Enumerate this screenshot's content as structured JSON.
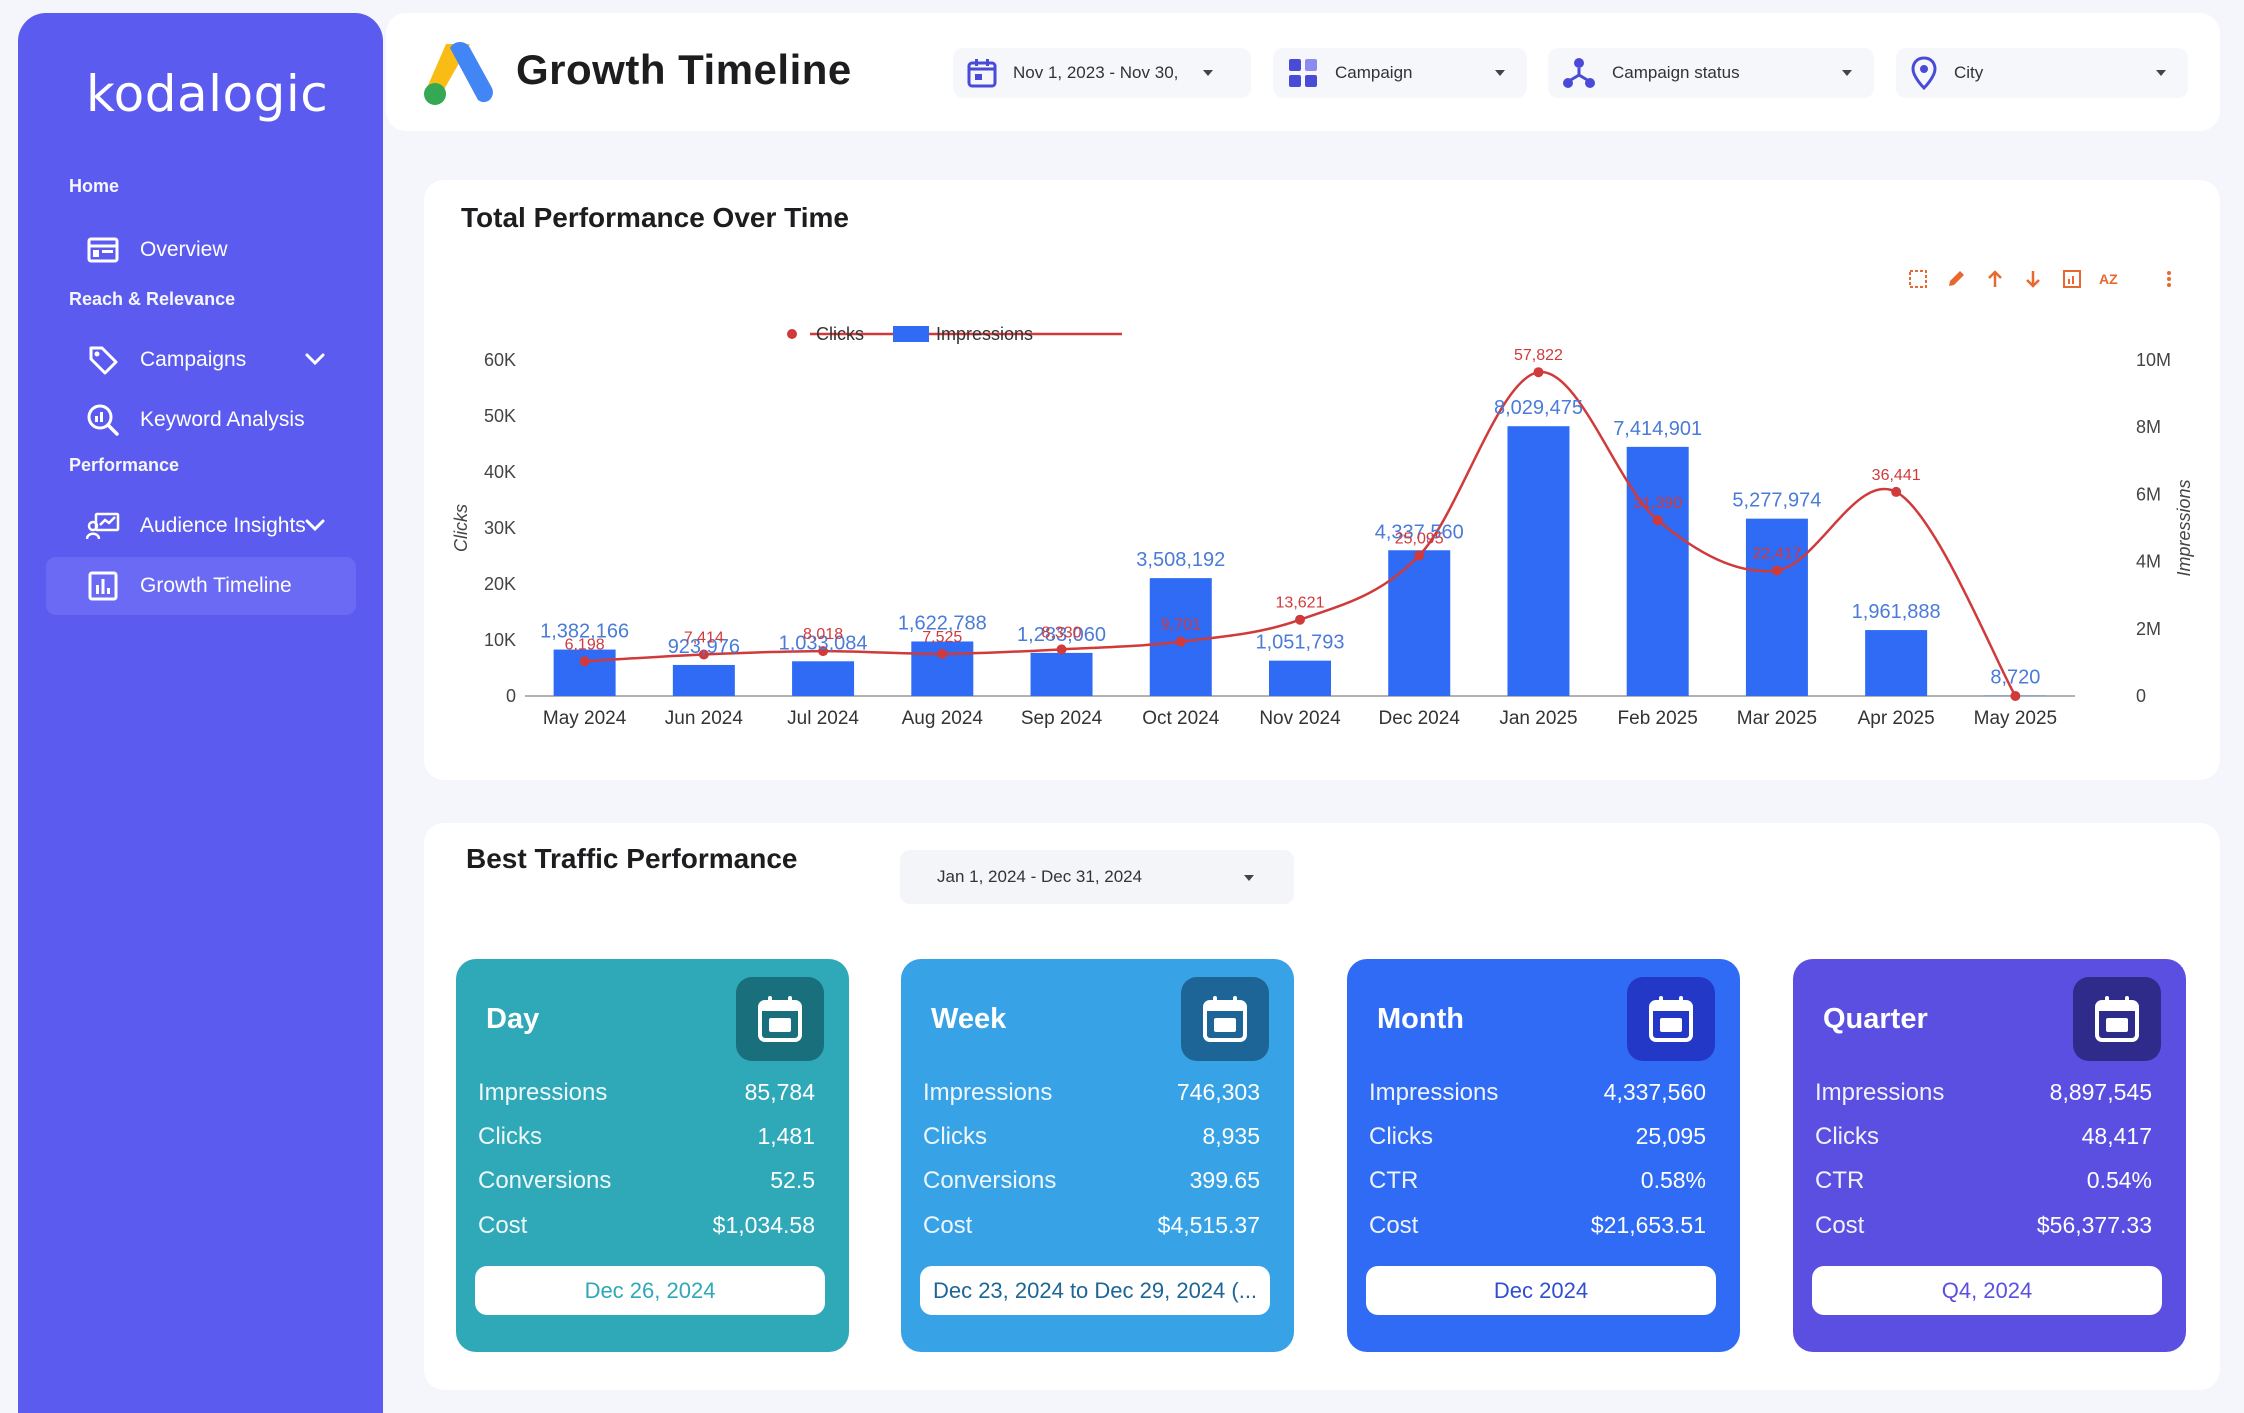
{
  "brand": "kodalogic",
  "sidebar": {
    "sections": [
      {
        "label": "Home"
      },
      {
        "label": "Reach & Relevance"
      },
      {
        "label": "Performance"
      }
    ],
    "items": [
      {
        "label": "Overview",
        "icon": "overview-icon"
      },
      {
        "label": "Campaigns",
        "icon": "tag-icon"
      },
      {
        "label": "Keyword Analysis",
        "icon": "magnifier-chart-icon"
      },
      {
        "label": "Audience Insights",
        "icon": "audience-chart-icon"
      },
      {
        "label": "Growth Timeline",
        "icon": "bar-chart-icon",
        "active": true
      }
    ]
  },
  "header": {
    "title": "Growth Timeline",
    "filters": [
      {
        "label": "Nov 1, 2023 - Nov 30,",
        "icon": "calendar-icon"
      },
      {
        "label": "Campaign",
        "icon": "grid-icon"
      },
      {
        "label": "Campaign status",
        "icon": "network-icon"
      },
      {
        "label": "City",
        "icon": "location-pin-icon"
      }
    ]
  },
  "performance": {
    "title": "Total Performance Over Time"
  },
  "chart_data": {
    "type": "bar",
    "title": "Total Performance Over Time",
    "categories": [
      "May 2024",
      "Jun 2024",
      "Jul 2024",
      "Aug 2024",
      "Sep 2024",
      "Oct 2024",
      "Nov 2024",
      "Dec 2024",
      "Jan 2025",
      "Feb 2025",
      "Mar 2025",
      "Apr 2025",
      "May 2025"
    ],
    "series": [
      {
        "name": "Impressions",
        "type": "bar",
        "axis": "right",
        "color": "#2f6bf5",
        "values": [
          1382166,
          923976,
          1033084,
          1622788,
          1283060,
          3508192,
          1051793,
          4337560,
          8029475,
          7414901,
          5277974,
          1961888,
          8720
        ],
        "labels": [
          "1,382,166",
          "923,976",
          "1,033,084",
          "1,622,788",
          "1,283,060",
          "3,508,192",
          "1,051,793",
          "4,337,560",
          "8,029,475",
          "7,414,901",
          "5,277,974",
          "1,961,888",
          "8,720"
        ]
      },
      {
        "name": "Clicks",
        "type": "line",
        "axis": "left",
        "color": "#d03a3a",
        "values": [
          6198,
          7414,
          8018,
          7525,
          8330,
          9701,
          13621,
          25095,
          57822,
          31390,
          22417,
          36441,
          0
        ],
        "labels": [
          "6,198",
          "7,414",
          "8,018",
          "7,525",
          "8,330",
          "9,701",
          "13,621",
          "25,095",
          "57,822",
          "31,390",
          "22,417",
          "36,441",
          ""
        ]
      }
    ],
    "ylabel": "Clicks",
    "y2label": "Impressions",
    "ylim": [
      0,
      60000
    ],
    "y2lim": [
      0,
      10000000
    ],
    "yticks": [
      "0",
      "10K",
      "20K",
      "30K",
      "40K",
      "50K",
      "60K"
    ],
    "y2ticks": [
      "0",
      "2M",
      "4M",
      "6M",
      "8M",
      "10M"
    ],
    "legend": [
      "Clicks",
      "Impressions"
    ],
    "legend_position": "top-center"
  },
  "best": {
    "title": "Best Traffic Performance",
    "date_range": "Jan 1, 2024 - Dec 31, 2024",
    "tiles": [
      {
        "title": "Day",
        "color": "#2fa8b8",
        "icon_bg": "#1a6f7c",
        "rows": [
          [
            "Impressions",
            "85,784"
          ],
          [
            "Clicks",
            "1,481"
          ],
          [
            "Conversions",
            "52.5"
          ],
          [
            "Cost",
            "$1,034.58"
          ]
        ],
        "button": "Dec 26, 2024",
        "button_color": "#2fa8b8"
      },
      {
        "title": "Week",
        "color": "#38a2e6",
        "icon_bg": "#1d6596",
        "rows": [
          [
            "Impressions",
            "746,303"
          ],
          [
            "Clicks",
            "8,935"
          ],
          [
            "Conversions",
            "399.65"
          ],
          [
            "Cost",
            "$4,515.37"
          ]
        ],
        "button": "Dec 23, 2024 to Dec 29, 2024 (...",
        "button_color": "#1d6596"
      },
      {
        "title": "Month",
        "color": "#2f6bf5",
        "icon_bg": "#2438c8",
        "rows": [
          [
            "Impressions",
            "4,337,560"
          ],
          [
            "Clicks",
            "25,095"
          ],
          [
            "CTR",
            "0.58%"
          ],
          [
            "Cost",
            "$21,653.51"
          ]
        ],
        "button": "Dec 2024",
        "button_color": "#2f4fd0"
      },
      {
        "title": "Quarter",
        "color": "#5a4fe0",
        "icon_bg": "#2e2b8a",
        "rows": [
          [
            "Impressions",
            "8,897,545"
          ],
          [
            "Clicks",
            "48,417"
          ],
          [
            "CTR",
            "0.54%"
          ],
          [
            "Cost",
            "$56,377.33"
          ]
        ],
        "button": "Q4, 2024",
        "button_color": "#5a4fe0"
      }
    ]
  }
}
